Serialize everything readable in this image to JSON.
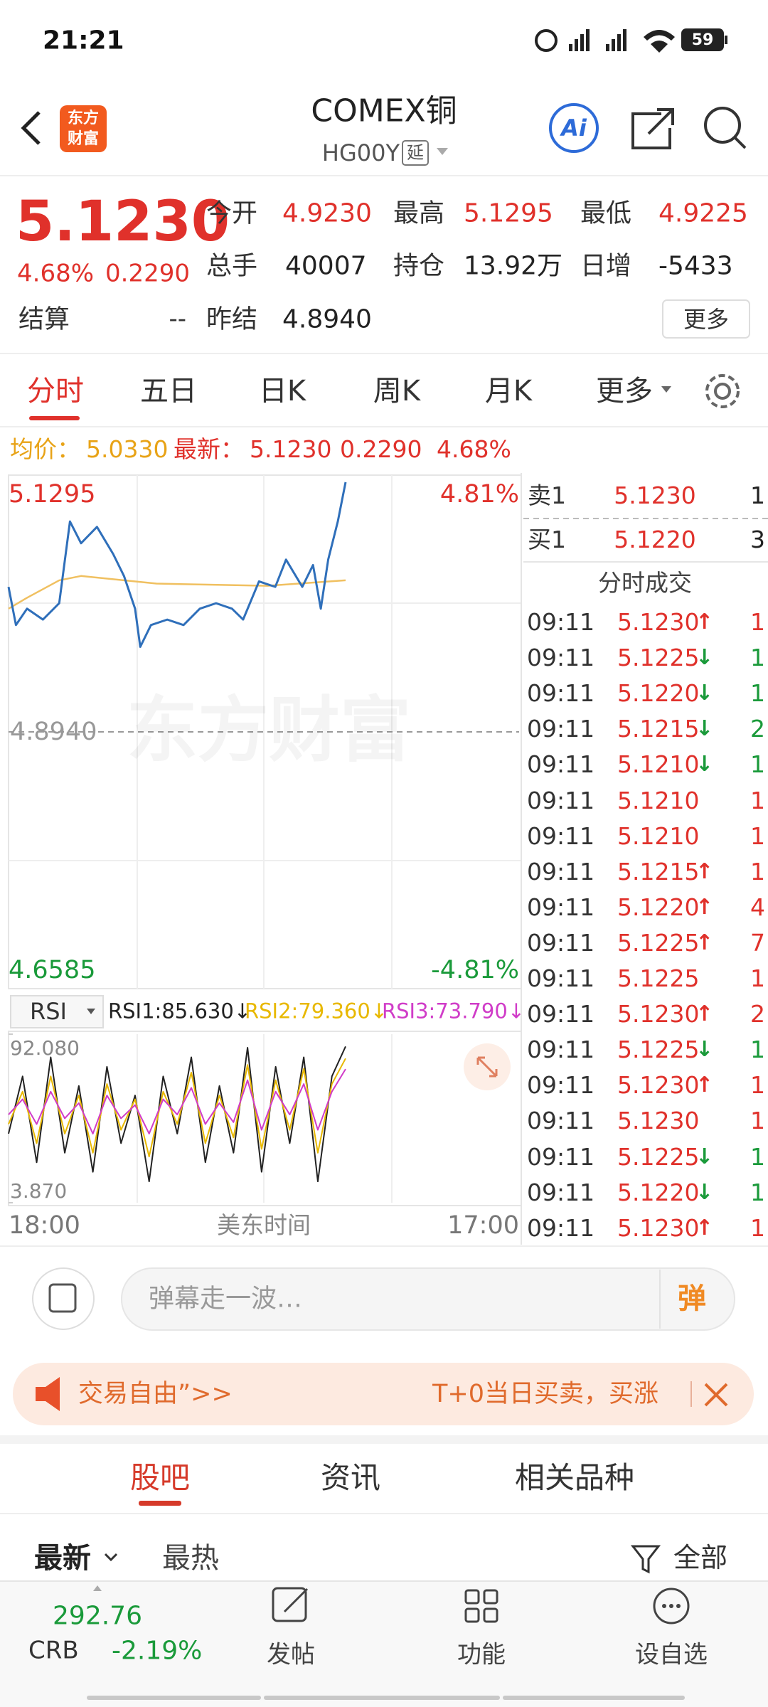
{
  "status_bar": {
    "time": "21:21",
    "battery": "59"
  },
  "header": {
    "logo": [
      "东方",
      "财富"
    ],
    "title": "COMEX铜",
    "code": "HG00Y",
    "tag": "延",
    "ai": "Ai"
  },
  "quote": {
    "price": "5.1230",
    "change_pct": "4.68%",
    "change": "0.2290",
    "settle_label": "结算",
    "settle": "--",
    "stats": [
      {
        "label": "今开",
        "value": "4.9230"
      },
      {
        "label": "最高",
        "value": "5.1295"
      },
      {
        "label": "最低",
        "value": "4.9225"
      },
      {
        "label": "总手",
        "value": "40007"
      },
      {
        "label": "持仓",
        "value": "13.92万"
      },
      {
        "label": "日增",
        "value": "-5433"
      },
      {
        "label": "昨结",
        "value": "4.8940"
      }
    ],
    "more": "更多"
  },
  "tabs": [
    "分时",
    "五日",
    "日K",
    "周K",
    "月K",
    "更多"
  ],
  "info_line": {
    "avg_label": "均价：",
    "avg": "5.0330",
    "last_label": "最新：",
    "last": "5.1230",
    "change": "0.2290",
    "change_pct": "4.68%"
  },
  "intraday": {
    "type": "line",
    "ylim": [
      4.6585,
      5.1295
    ],
    "xlim": [
      0,
      1380
    ],
    "top_pct": "4.81%",
    "bottom_pct": "-4.81%",
    "prev_close": {
      "value": 4.894,
      "label": "4.8940"
    },
    "watermark": "东方财富",
    "x_labels": [
      "18:00",
      "美东时间",
      "17:00"
    ],
    "price": {
      "color": "#2f6fba",
      "x": [
        0,
        20,
        50,
        93,
        137,
        166,
        196,
        239,
        283,
        312,
        342,
        356,
        385,
        429,
        473,
        517,
        561,
        604,
        634,
        677,
        721,
        750,
        794,
        823,
        844,
        864,
        890,
        911
      ],
      "values": [
        5.027,
        4.992,
        5.007,
        4.997,
        5.012,
        5.087,
        5.067,
        5.082,
        5.057,
        5.037,
        5.007,
        4.972,
        4.992,
        4.997,
        4.992,
        5.007,
        5.012,
        5.007,
        4.997,
        5.032,
        5.027,
        5.052,
        5.027,
        5.047,
        5.007,
        5.052,
        5.087,
        5.123
      ]
    },
    "avg": {
      "color": "#f0c060",
      "x": [
        0,
        50,
        137,
        196,
        400,
        700,
        911
      ],
      "values": [
        5.007,
        5.017,
        5.033,
        5.037,
        5.03,
        5.028,
        5.033
      ]
    }
  },
  "rsi": {
    "type": "line",
    "selector": "RSI",
    "ylim": [
      3.87,
      92.08
    ],
    "yticks": [
      {
        "value": 92.08,
        "label": "92.080"
      },
      {
        "value": 3.87,
        "label": "3.870"
      }
    ],
    "x": [
      0,
      38,
      76,
      114,
      152,
      190,
      228,
      266,
      304,
      342,
      380,
      418,
      456,
      494,
      532,
      570,
      608,
      646,
      684,
      722,
      760,
      798,
      836,
      874,
      911
    ],
    "series": [
      {
        "name": "RSI1:85.630↓",
        "color": "#222222",
        "values": [
          40,
          70,
          25,
          80,
          30,
          65,
          20,
          75,
          35,
          60,
          15,
          70,
          40,
          80,
          25,
          65,
          30,
          85,
          20,
          75,
          35,
          80,
          15,
          70,
          85.63
        ]
      },
      {
        "name": "RSI2:79.360↓",
        "color": "#e8b800",
        "values": [
          45,
          62,
          35,
          70,
          40,
          60,
          30,
          66,
          42,
          58,
          28,
          62,
          45,
          72,
          35,
          60,
          38,
          76,
          32,
          68,
          42,
          74,
          30,
          66,
          79.36
        ]
      },
      {
        "name": "RSI3:73.790↓",
        "color": "#d03cc8",
        "values": [
          50,
          58,
          45,
          62,
          48,
          56,
          40,
          60,
          48,
          55,
          40,
          58,
          50,
          64,
          45,
          56,
          46,
          68,
          42,
          62,
          50,
          66,
          42,
          62,
          73.79
        ]
      }
    ]
  },
  "order_book": [
    {
      "side": "卖1",
      "price": "5.1230",
      "volume": "1"
    },
    {
      "side": "买1",
      "price": "5.1220",
      "volume": "3"
    }
  ],
  "trades_title": "分时成交",
  "trades": [
    {
      "time": "09:11",
      "price": "5.1230",
      "dir": "↑",
      "volume": "1"
    },
    {
      "time": "09:11",
      "price": "5.1225",
      "dir": "↓",
      "volume": "1"
    },
    {
      "time": "09:11",
      "price": "5.1220",
      "dir": "↓",
      "volume": "1"
    },
    {
      "time": "09:11",
      "price": "5.1215",
      "dir": "↓",
      "volume": "2"
    },
    {
      "time": "09:11",
      "price": "5.1210",
      "dir": "↓",
      "volume": "1"
    },
    {
      "time": "09:11",
      "price": "5.1210",
      "volume": "1"
    },
    {
      "time": "09:11",
      "price": "5.1210",
      "volume": "1"
    },
    {
      "time": "09:11",
      "price": "5.1215",
      "dir": "↑",
      "volume": "1"
    },
    {
      "time": "09:11",
      "price": "5.1220",
      "dir": "↑",
      "volume": "4"
    },
    {
      "time": "09:11",
      "price": "5.1225",
      "dir": "↑",
      "volume": "7"
    },
    {
      "time": "09:11",
      "price": "5.1225",
      "volume": "1"
    },
    {
      "time": "09:11",
      "price": "5.1230",
      "dir": "↑",
      "volume": "2"
    },
    {
      "time": "09:11",
      "price": "5.1225",
      "dir": "↓",
      "volume": "1"
    },
    {
      "time": "09:11",
      "price": "5.1230",
      "dir": "↑",
      "volume": "1"
    },
    {
      "time": "09:11",
      "price": "5.1230",
      "volume": "1"
    },
    {
      "time": "09:11",
      "price": "5.1225",
      "dir": "↓",
      "volume": "1"
    },
    {
      "time": "09:11",
      "price": "5.1220",
      "dir": "↓",
      "volume": "1"
    },
    {
      "time": "09:11",
      "price": "5.1230",
      "dir": "↑",
      "volume": "1"
    }
  ],
  "danmu": {
    "placeholder": "弹幕走一波…",
    "button": "弹"
  },
  "banner": {
    "left": "交易自由”>>",
    "right": "T+0当日买卖，买涨"
  },
  "section_tabs": [
    "股吧",
    "资讯",
    "相关品种"
  ],
  "filters": {
    "latest": "最新",
    "hot": "最热",
    "all": "全部"
  },
  "bottom_nav": {
    "index": {
      "value": "292.76",
      "name": "CRB",
      "change": "-2.19%"
    },
    "items": [
      "发帖",
      "功能",
      "设自选"
    ]
  }
}
